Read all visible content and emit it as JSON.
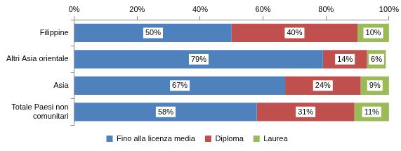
{
  "chart_data": {
    "type": "bar",
    "orientation": "horizontal",
    "stacked": true,
    "data_labels": true,
    "grid": false,
    "legend": "bottom",
    "categories": [
      "Filippine",
      "Altri Asia orientale",
      "Asia",
      "Totale Paesi non comunitari"
    ],
    "series": [
      {
        "name": "Fino alla licenza media",
        "color": "#4f81bd",
        "values": [
          50,
          79,
          67,
          58
        ],
        "value_labels": [
          "50%",
          "79%",
          "67%",
          "58%"
        ]
      },
      {
        "name": "Diploma",
        "color": "#c0504d",
        "values": [
          40,
          14,
          24,
          31
        ],
        "value_labels": [
          "40%",
          "14%",
          "24%",
          "31%"
        ]
      },
      {
        "name": "Laurea",
        "color": "#9bbb59",
        "values": [
          10,
          6,
          9,
          11
        ],
        "value_labels": [
          "10%",
          "6%",
          "9%",
          "11%"
        ]
      }
    ],
    "xlim": [
      0,
      100
    ],
    "xticks": [
      {
        "value": 0,
        "label": "0%"
      },
      {
        "value": 20,
        "label": "20%"
      },
      {
        "value": 40,
        "label": "40%"
      },
      {
        "value": 60,
        "label": "60%"
      },
      {
        "value": 80,
        "label": "80%"
      },
      {
        "value": 100,
        "label": "100%"
      }
    ]
  }
}
